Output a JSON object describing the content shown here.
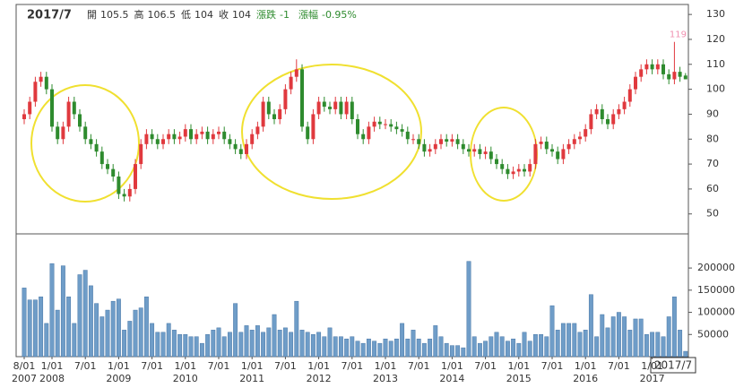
{
  "chart_data": {
    "type": "candlestick",
    "header": {
      "date": "2017/7",
      "items": [
        {
          "label": "開",
          "value": 105.5
        },
        {
          "label": "高",
          "value": 106.5
        },
        {
          "label": "低",
          "value": 104
        },
        {
          "label": "收",
          "value": 104
        },
        {
          "label": "漲跌",
          "value": -1
        },
        {
          "label": "漲幅",
          "value": {
            "value": -0.95,
            "label": "-0.95%"
          }
        }
      ]
    },
    "max_high": 119,
    "categories": [
      "8/01",
      null,
      null,
      null,
      null,
      "1/01",
      null,
      null,
      null,
      null,
      null,
      "7/01",
      null,
      null,
      null,
      null,
      null,
      "1/01",
      null,
      null,
      null,
      null,
      null,
      "7/01",
      null,
      null,
      null,
      null,
      null,
      "1/01",
      null,
      null,
      null,
      null,
      null,
      "7/01",
      null,
      null,
      null,
      null,
      null,
      "1/01",
      null,
      null,
      null,
      null,
      null,
      "7/01",
      null,
      null,
      null,
      null,
      null,
      "1/01",
      null,
      null,
      null,
      null,
      null,
      "7/01",
      null,
      null,
      null,
      null,
      null,
      "1/01",
      null,
      null,
      null,
      null,
      null,
      "7/01",
      null,
      null,
      null,
      null,
      null,
      "1/01",
      null,
      null,
      null,
      null,
      null,
      "7/01",
      null,
      null,
      null,
      null,
      null,
      "1/01",
      null,
      null,
      null,
      null,
      null,
      "7/01",
      null,
      null,
      null,
      null,
      null,
      "1/01",
      null,
      null,
      null,
      null,
      null,
      "7/01",
      null,
      null,
      null,
      null,
      null,
      "1/01",
      null,
      null,
      null,
      null,
      null,
      null
    ],
    "years": [
      "2007",
      null,
      null,
      null,
      null,
      "2008",
      null,
      null,
      null,
      null,
      null,
      null,
      null,
      null,
      null,
      null,
      null,
      "2009",
      null,
      null,
      null,
      null,
      null,
      null,
      null,
      null,
      null,
      null,
      null,
      "2010",
      null,
      null,
      null,
      null,
      null,
      null,
      null,
      null,
      null,
      null,
      null,
      "2011",
      null,
      null,
      null,
      null,
      null,
      null,
      null,
      null,
      null,
      null,
      null,
      "2012",
      null,
      null,
      null,
      null,
      null,
      null,
      null,
      null,
      null,
      null,
      null,
      "2013",
      null,
      null,
      null,
      null,
      null,
      null,
      null,
      null,
      null,
      null,
      null,
      "2014",
      null,
      null,
      null,
      null,
      null,
      null,
      null,
      null,
      null,
      null,
      null,
      "2015",
      null,
      null,
      null,
      null,
      null,
      null,
      null,
      null,
      null,
      null,
      null,
      "2016",
      null,
      null,
      null,
      null,
      null,
      null,
      null,
      null,
      null,
      null,
      null,
      "2017",
      null,
      null,
      null,
      null,
      null,
      null
    ],
    "open": [
      88,
      90,
      95,
      103,
      105,
      100,
      85,
      80,
      85,
      95,
      90,
      85,
      80,
      78,
      75,
      70,
      68,
      65,
      58,
      57,
      60,
      70,
      78,
      82,
      80,
      78,
      80,
      82,
      80,
      81,
      84,
      80,
      82,
      83,
      80,
      82,
      83,
      80,
      78,
      76,
      74,
      78,
      82,
      85,
      95,
      90,
      88,
      92,
      100,
      105,
      108,
      85,
      80,
      90,
      95,
      93,
      92,
      95,
      90,
      95,
      88,
      82,
      80,
      85,
      87,
      86,
      86,
      85,
      84,
      83,
      80,
      80,
      78,
      75,
      76,
      78,
      80,
      79,
      80,
      78,
      76,
      75,
      76,
      74,
      75,
      72,
      70,
      68,
      66,
      67,
      68,
      67,
      70,
      78,
      79,
      76,
      75,
      72,
      76,
      78,
      80,
      81,
      84,
      90,
      92,
      88,
      86,
      90,
      92,
      95,
      100,
      105,
      108,
      110,
      108,
      110,
      106,
      104,
      107,
      105.5
    ],
    "high": [
      92,
      97,
      105,
      107,
      107,
      102,
      87,
      87,
      97,
      97,
      92,
      87,
      82,
      80,
      77,
      72,
      70,
      67,
      60,
      62,
      72,
      80,
      84,
      84,
      82,
      82,
      84,
      84,
      83,
      86,
      86,
      84,
      85,
      85,
      84,
      85,
      85,
      82,
      80,
      78,
      80,
      84,
      87,
      97,
      97,
      92,
      94,
      102,
      107,
      112,
      110,
      87,
      92,
      97,
      97,
      95,
      97,
      97,
      97,
      97,
      90,
      84,
      87,
      89,
      89,
      88,
      88,
      87,
      86,
      85,
      82,
      82,
      80,
      78,
      80,
      82,
      82,
      82,
      82,
      80,
      78,
      78,
      78,
      77,
      77,
      74,
      72,
      70,
      69,
      70,
      70,
      72,
      80,
      81,
      81,
      78,
      77,
      78,
      80,
      82,
      83,
      86,
      92,
      94,
      94,
      90,
      92,
      94,
      97,
      102,
      107,
      110,
      112,
      112,
      112,
      112,
      108,
      119,
      109,
      106.5
    ],
    "low": [
      86,
      88,
      93,
      101,
      98,
      83,
      78,
      78,
      83,
      88,
      83,
      78,
      76,
      73,
      68,
      66,
      63,
      56,
      55,
      55,
      58,
      68,
      76,
      78,
      76,
      76,
      78,
      78,
      78,
      79,
      78,
      78,
      80,
      78,
      78,
      80,
      78,
      76,
      74,
      72,
      72,
      76,
      80,
      83,
      88,
      86,
      86,
      90,
      98,
      103,
      83,
      78,
      78,
      88,
      91,
      90,
      90,
      88,
      88,
      86,
      80,
      78,
      78,
      83,
      84,
      84,
      83,
      82,
      81,
      78,
      78,
      76,
      73,
      73,
      74,
      76,
      77,
      77,
      76,
      74,
      73,
      73,
      72,
      72,
      70,
      68,
      66,
      64,
      64,
      65,
      65,
      65,
      68,
      76,
      74,
      73,
      70,
      70,
      74,
      76,
      78,
      79,
      82,
      88,
      86,
      84,
      84,
      88,
      90,
      93,
      98,
      103,
      106,
      106,
      106,
      104,
      102,
      102,
      103,
      104
    ],
    "close": [
      90,
      95,
      103,
      105,
      100,
      85,
      80,
      85,
      95,
      90,
      85,
      80,
      78,
      75,
      70,
      68,
      65,
      58,
      57,
      60,
      70,
      78,
      82,
      80,
      78,
      80,
      82,
      80,
      81,
      84,
      80,
      82,
      83,
      80,
      82,
      83,
      80,
      78,
      76,
      74,
      78,
      82,
      85,
      95,
      90,
      88,
      92,
      100,
      105,
      108,
      85,
      80,
      90,
      95,
      93,
      92,
      95,
      90,
      95,
      88,
      82,
      80,
      85,
      87,
      86,
      86,
      85,
      84,
      83,
      80,
      80,
      78,
      75,
      76,
      78,
      80,
      79,
      80,
      78,
      76,
      75,
      76,
      74,
      75,
      72,
      70,
      68,
      66,
      67,
      68,
      67,
      70,
      78,
      79,
      76,
      75,
      72,
      76,
      78,
      80,
      81,
      84,
      90,
      92,
      88,
      86,
      90,
      92,
      95,
      100,
      105,
      108,
      110,
      108,
      110,
      106,
      104,
      107,
      105,
      104
    ],
    "volume": [
      155000,
      128000,
      128000,
      135000,
      75000,
      210000,
      105000,
      205000,
      135000,
      75000,
      185000,
      195000,
      160000,
      120000,
      90000,
      105000,
      125000,
      130000,
      60000,
      80000,
      105000,
      110000,
      135000,
      75000,
      55000,
      55000,
      75000,
      60000,
      50000,
      50000,
      45000,
      45000,
      30000,
      50000,
      60000,
      65000,
      45000,
      55000,
      120000,
      55000,
      70000,
      60000,
      70000,
      55000,
      65000,
      95000,
      60000,
      65000,
      55000,
      125000,
      60000,
      55000,
      50000,
      55000,
      45000,
      65000,
      45000,
      45000,
      40000,
      45000,
      35000,
      30000,
      40000,
      35000,
      30000,
      40000,
      35000,
      40000,
      75000,
      40000,
      60000,
      40000,
      30000,
      40000,
      70000,
      45000,
      30000,
      25000,
      25000,
      20000,
      215000,
      45000,
      30000,
      35000,
      45000,
      55000,
      45000,
      35000,
      40000,
      30000,
      55000,
      35000,
      50000,
      50000,
      45000,
      115000,
      60000,
      75000,
      75000,
      75000,
      55000,
      60000,
      140000,
      45000,
      95000,
      65000,
      90000,
      100000,
      90000,
      60000,
      85000,
      85000,
      50000,
      55000,
      55000,
      45000,
      90000,
      135000,
      60000,
      12000
    ],
    "up_color": "#e0393e",
    "down_color": "#2e8b2e",
    "volume_color": "#6f9dc8",
    "ylim": [
      42,
      134
    ],
    "yticks": [
      50,
      60,
      70,
      80,
      90,
      100,
      110,
      120,
      130
    ],
    "volume_ylim": [
      0,
      275000
    ],
    "volume_yticks": [
      50000,
      100000,
      150000,
      200000
    ]
  }
}
